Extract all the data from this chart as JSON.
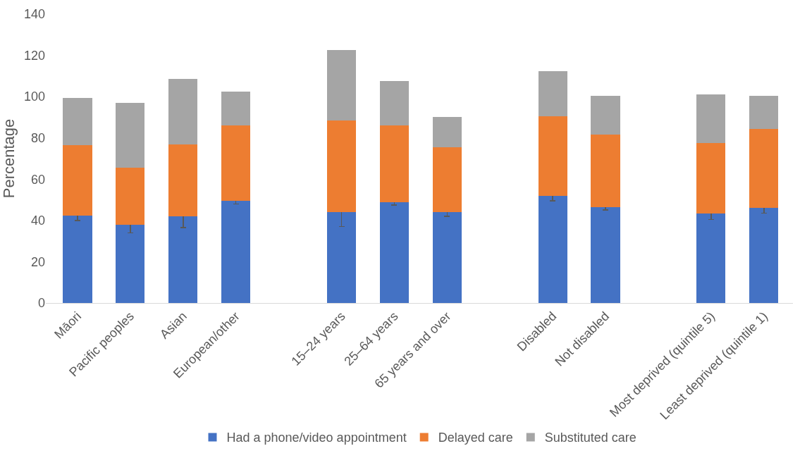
{
  "chart_data": {
    "type": "bar",
    "stacked": true,
    "ylabel": "Percentage",
    "categories": [
      "Māori",
      "Pacific peoples",
      "Asian",
      "European/other",
      null,
      "15–24 years",
      "25–64 years",
      "65 years and over",
      null,
      "Disabled",
      "Not disabled",
      null,
      "Most deprived (quintile 5)",
      "Least deprived (quintile 1)"
    ],
    "series": [
      {
        "name": "Had a phone/video appointment",
        "color": "#4472c4",
        "values": [
          42.5,
          38,
          42,
          49.5,
          null,
          44,
          49,
          44,
          null,
          52,
          46.5,
          null,
          43.5,
          46
        ],
        "errors": [
          2.5,
          4,
          5.5,
          1.5,
          null,
          7,
          1.5,
          2,
          null,
          2.5,
          1.5,
          null,
          3,
          2.5
        ]
      },
      {
        "name": "Delayed care",
        "color": "#ed7d31",
        "values": [
          34,
          27.5,
          35,
          36.5,
          null,
          44.5,
          37,
          31.5,
          null,
          38.5,
          35,
          null,
          34,
          38.5
        ]
      },
      {
        "name": "Substituted care",
        "color": "#a5a5a5",
        "values": [
          23,
          31.5,
          31.5,
          16.5,
          null,
          34,
          21.5,
          14.5,
          null,
          22,
          19,
          null,
          23.5,
          16
        ]
      }
    ],
    "ylim": [
      0,
      140
    ],
    "yticks": [
      0,
      20,
      40,
      60,
      80,
      100,
      120,
      140
    ],
    "grid": false,
    "legend": "bottom"
  }
}
